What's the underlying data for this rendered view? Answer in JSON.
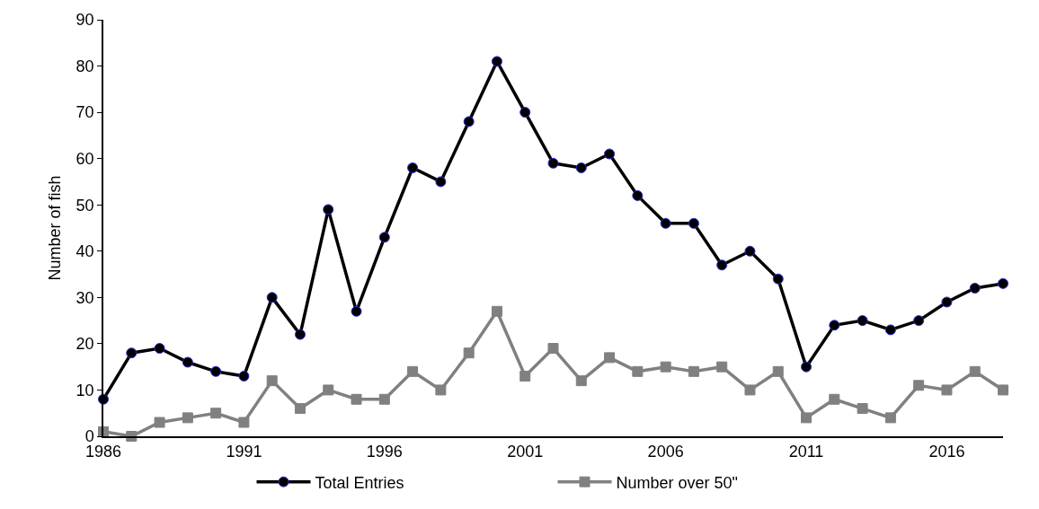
{
  "chart_data": {
    "type": "line",
    "ylabel": "Number of fish",
    "x": [
      1986,
      1987,
      1988,
      1989,
      1990,
      1991,
      1992,
      1993,
      1994,
      1995,
      1996,
      1997,
      1998,
      1999,
      2000,
      2001,
      2002,
      2003,
      2004,
      2005,
      2006,
      2007,
      2008,
      2009,
      2010,
      2011,
      2012,
      2013,
      2014,
      2015,
      2016,
      2017,
      2018
    ],
    "series": [
      {
        "name": "Total Entries",
        "color": "#000000",
        "marker": "circle",
        "values": [
          8,
          18,
          19,
          16,
          14,
          13,
          30,
          22,
          49,
          27,
          43,
          58,
          55,
          68,
          81,
          70,
          59,
          58,
          61,
          52,
          46,
          46,
          37,
          40,
          34,
          15,
          24,
          25,
          23,
          25,
          29,
          32,
          33
        ]
      },
      {
        "name": "Number over 50\"",
        "color": "#808080",
        "marker": "square",
        "values": [
          1,
          0,
          3,
          4,
          5,
          3,
          12,
          6,
          10,
          8,
          8,
          14,
          10,
          18,
          27,
          13,
          19,
          12,
          17,
          14,
          15,
          14,
          15,
          10,
          14,
          4,
          8,
          6,
          4,
          11,
          10,
          14,
          10
        ]
      }
    ],
    "xlim": [
      1986,
      2018
    ],
    "xticks": [
      1986,
      1991,
      1996,
      2001,
      2006,
      2011,
      2016
    ],
    "ylim": [
      0,
      90
    ],
    "yticks": [
      0,
      10,
      20,
      30,
      40,
      50,
      60,
      70,
      80,
      90
    ],
    "grid": false,
    "legend": "bottom",
    "line_style": "solid"
  }
}
